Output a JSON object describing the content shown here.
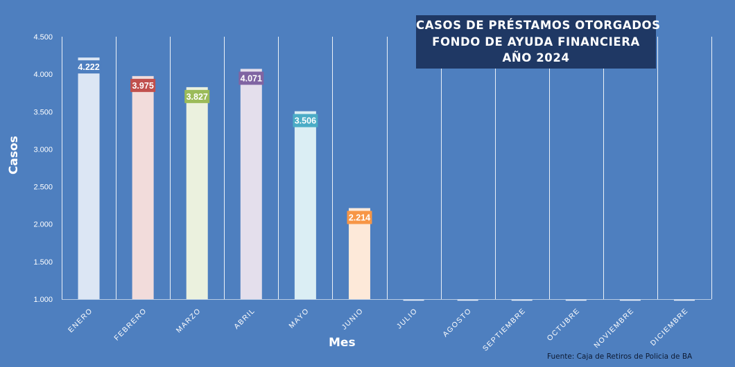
{
  "title": {
    "line1": "CASOS DE PRÉSTAMOS OTORGADOS",
    "line2": "FONDO DE AYUDA FINANCIERA",
    "line3": "AÑO 2024"
  },
  "source": "Fuente: Caja de Retiros de Policia de BA",
  "colors": {
    "background": "#4e7fbf",
    "title_box": "#1f3864",
    "bar_fills": [
      "#dce6f4",
      "#f2dcdb",
      "#ebf1de",
      "#e4dfec",
      "#dbeef4",
      "#fde9d9"
    ],
    "label_fills": [
      "#4e7fbf",
      "#c0504d",
      "#9bbb59",
      "#8064a2",
      "#4bacc6",
      "#f79646"
    ]
  },
  "chart_data": {
    "type": "bar",
    "title": "CASOS DE PRÉSTAMOS OTORGADOS FONDO DE AYUDA FINANCIERA AÑO 2024",
    "xlabel": "Mes",
    "ylabel": "Casos",
    "categories": [
      "ENERO",
      "FEBRERO",
      "MARZO",
      "ABRIL",
      "MAYO",
      "JUNIO",
      "JULIO",
      "AGOSTO",
      "SEPTIEMBRE",
      "OCTUBRE",
      "NOVIEMBRE",
      "DICIEMBRE"
    ],
    "values": [
      4222,
      3975,
      3827,
      4071,
      3506,
      2214,
      null,
      null,
      null,
      null,
      null,
      null
    ],
    "data_labels": [
      "4.222",
      "3.975",
      "3.827",
      "4.071",
      "3.506",
      "2.214",
      "",
      "",
      "",
      "",
      "",
      ""
    ],
    "ylim": [
      1000,
      4500
    ],
    "yticks": [
      1000,
      1500,
      2000,
      2500,
      3000,
      3500,
      4000,
      4500
    ],
    "ytick_labels": [
      "1.000",
      "1.500",
      "2.000",
      "2.500",
      "3.000",
      "3.500",
      "4.000",
      "4.500"
    ],
    "grid": "vertical category separators",
    "legend": "none"
  }
}
